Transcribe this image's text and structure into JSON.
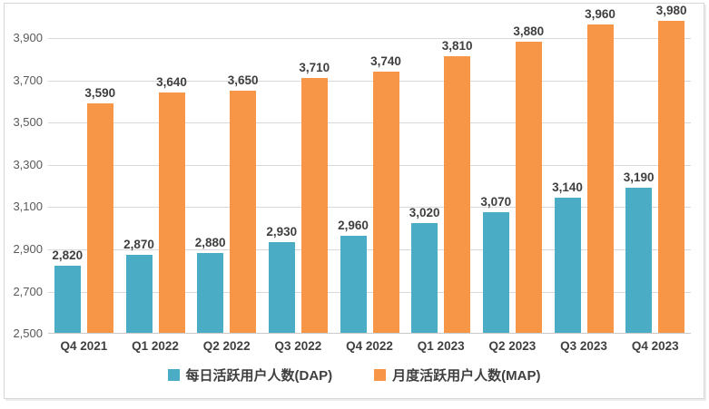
{
  "chart_data": {
    "type": "bar",
    "title": "",
    "xlabel": "",
    "ylabel": "",
    "categories": [
      "Q4 2021",
      "Q1 2022",
      "Q2 2022",
      "Q3 2022",
      "Q4 2022",
      "Q1 2023",
      "Q2 2023",
      "Q3 2023",
      "Q4 2023"
    ],
    "series": [
      {
        "name": "每日活跃用户人数(DAP)",
        "color": "#4BACC6",
        "values": [
          2820,
          2870,
          2880,
          2930,
          2960,
          3020,
          3070,
          3140,
          3190
        ],
        "labels": [
          "2,820",
          "2,870",
          "2,880",
          "2,930",
          "2,960",
          "3,020",
          "3,070",
          "3,140",
          "3,190"
        ]
      },
      {
        "name": "月度活跃用户人数(MAP)",
        "color": "#F79646",
        "values": [
          3590,
          3640,
          3650,
          3710,
          3740,
          3810,
          3880,
          3960,
          3980
        ],
        "labels": [
          "3,590",
          "3,640",
          "3,650",
          "3,710",
          "3,740",
          "3,810",
          "3,880",
          "3,960",
          "3,980"
        ]
      }
    ],
    "y_axis": {
      "min": 2500,
      "render_max": 4065,
      "ticks": [
        2500,
        2700,
        2900,
        3100,
        3300,
        3500,
        3700,
        3900
      ],
      "tick_labels": [
        "2,500",
        "2,700",
        "2,900",
        "3,100",
        "3,300",
        "3,500",
        "3,700",
        "3,900"
      ]
    },
    "grid": true,
    "data_labels": true,
    "legend_position": "bottom"
  },
  "style_colors": {
    "gridline": "#D9D9D9",
    "axis_line": "#C9C9C9",
    "tick_text": "#595959",
    "label_text": "#3F3F3F",
    "chart_border": "#D7D7D7",
    "background": "#FFFFFF"
  }
}
